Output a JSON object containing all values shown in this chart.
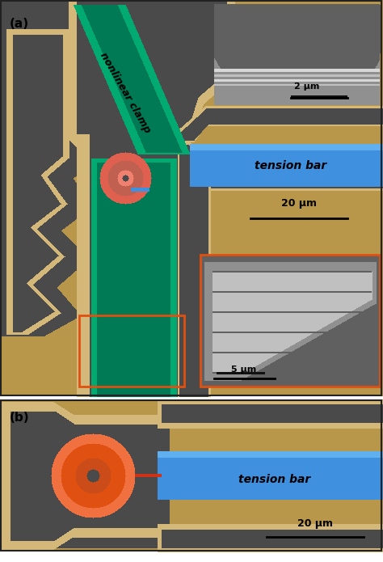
{
  "fig_width": 4.74,
  "fig_height": 6.95,
  "dpi": 100,
  "tan": "#b8974a",
  "tan_light": "#d4b87a",
  "dark_gray": "#4a4a4a",
  "mid_gray": "#787878",
  "light_gray": "#aaaaaa",
  "green_dark": "#007a55",
  "green_bright": "#00c896",
  "green_mid": "#00aa70",
  "blue": "#4090e0",
  "blue_light": "#60b0f0",
  "orange": "#e05010",
  "orange_light": "#f07040",
  "salmon": "#e06050",
  "salmon_light": "#f08070",
  "white": "#ffffff",
  "black": "#111111",
  "sem_dark": "#606060",
  "sem_mid": "#909090",
  "sem_light": "#c0c0c0",
  "sem_bright": "#d8d8d8",
  "panel_a_label": "(a)",
  "panel_b_label": "(b)",
  "label_nonlinear": "nonlinear clamp",
  "label_tension": "tension bar",
  "scale_20um": "20 μm",
  "scale_2um": "2 μm",
  "scale_5um": "5 μm"
}
